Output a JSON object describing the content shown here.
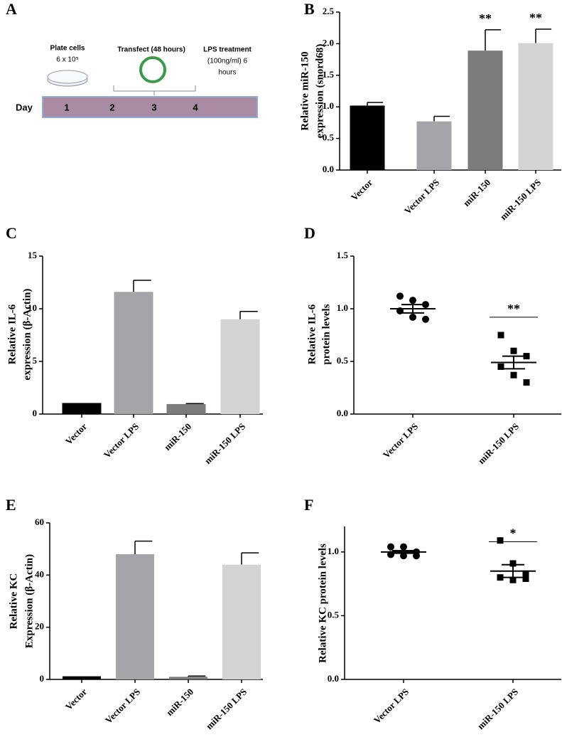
{
  "timeline": {
    "panel": "A",
    "day_label": "Day",
    "days": [
      1,
      2,
      3,
      4
    ],
    "steps": [
      {
        "lines": [
          "Plate cells",
          "6 x 10⁵"
        ]
      },
      {
        "lines": [
          "Transfect (48 hours)"
        ]
      },
      {
        "lines": [
          "LPS treatment",
          "(100ng/ml) 6",
          "hours"
        ]
      }
    ]
  },
  "chart_data": [
    {
      "type": "bar",
      "panel": "B",
      "y_label": [
        "Relative miR-150",
        "expression (snord68)"
      ],
      "categories": [
        "Vector",
        "Vector LPS",
        "miR-150",
        "miR-150 LPS"
      ],
      "values": [
        1.02,
        0.77,
        1.89,
        2.01
      ],
      "errors": [
        0.05,
        0.08,
        0.33,
        0.22
      ],
      "colors": [
        "#000000",
        "#a4a4a9",
        "#7b7b7b",
        "#d4d4d4"
      ],
      "annotations": [
        null,
        null,
        "**",
        "**"
      ],
      "ylim": [
        0,
        2.5
      ],
      "yticks": [
        {
          "value": 0,
          "label": "0.0"
        },
        {
          "value": 0.5,
          "label": "0.5"
        },
        {
          "value": 1,
          "label": "1.0"
        },
        {
          "value": 1.5,
          "label": "1.5"
        },
        {
          "value": 2,
          "label": "2.0"
        },
        {
          "value": 2.5,
          "label": "2.5"
        }
      ]
    },
    {
      "type": "bar",
      "panel": "C",
      "y_label": [
        "Relative IL-6",
        "expression  (β-Actin)"
      ],
      "categories": [
        "Vector",
        "Vector LPS",
        "miR-150",
        "miR-150 LPS"
      ],
      "values": [
        1.05,
        11.6,
        0.95,
        9.0
      ],
      "errors": [
        null,
        1.1,
        0.05,
        0.75
      ],
      "colors": [
        "#000000",
        "#a4a4a9",
        "#7b7b7b",
        "#d4d4d4"
      ],
      "ylim": [
        0,
        15
      ],
      "yticks": [
        0,
        5,
        10,
        15
      ]
    },
    {
      "type": "scatter",
      "panel": "D",
      "y_label": [
        "Relative IL-6",
        "protein levels"
      ],
      "categories": [
        "Vector LPS",
        "miR-150 LPS"
      ],
      "values": [
        [
          1.12,
          1.08,
          1.04,
          0.98,
          0.92,
          0.9
        ],
        [
          0.75,
          0.6,
          0.55,
          0.45,
          0.37,
          0.3
        ]
      ],
      "means": [
        1.0,
        0.49
      ],
      "errors": [
        0.04,
        0.06
      ],
      "markers": [
        "circle",
        "square"
      ],
      "significance": "**",
      "significance_at": 0.92,
      "ylim": [
        0,
        1.5
      ],
      "yticks": [
        {
          "value": 0,
          "label": "0.0"
        },
        {
          "value": 0.5,
          "label": "0.5"
        },
        {
          "value": 1,
          "label": "1.0"
        },
        {
          "value": 1.5,
          "label": "1.5"
        }
      ]
    },
    {
      "type": "bar",
      "panel": "E",
      "y_label": [
        "Relative KC",
        "Expression (β-Actin)"
      ],
      "categories": [
        "Vector",
        "Vector LPS",
        "miR-150",
        "miR-150 LPS"
      ],
      "values": [
        1.2,
        48,
        1.0,
        44
      ],
      "errors": [
        null,
        5,
        0.3,
        4.5
      ],
      "colors": [
        "#000000",
        "#a4a4a9",
        "#7b7b7b",
        "#d4d4d4"
      ],
      "ylim": [
        0,
        60
      ],
      "yticks": [
        0,
        20,
        40,
        60
      ]
    },
    {
      "type": "scatter",
      "panel": "F",
      "y_label": [
        "Relative KC protein levels"
      ],
      "categories": [
        "Vector LPS",
        "miR-150 LPS"
      ],
      "values": [
        [
          1.04,
          1.04,
          1.0,
          0.98,
          0.97,
          0.97
        ],
        [
          1.09,
          0.91,
          0.83,
          0.8,
          0.78,
          0.79
        ]
      ],
      "means": [
        1.0,
        0.85
      ],
      "errors": [
        0.01,
        0.05
      ],
      "markers": [
        "circle",
        "square"
      ],
      "significance": "*",
      "significance_at": 1.08,
      "ylim": [
        0,
        1.2
      ],
      "yticks": [
        {
          "value": 0,
          "label": "0.0"
        },
        {
          "value": 0.5,
          "label": "0.5"
        },
        {
          "value": 1,
          "label": "1.0"
        }
      ]
    }
  ]
}
